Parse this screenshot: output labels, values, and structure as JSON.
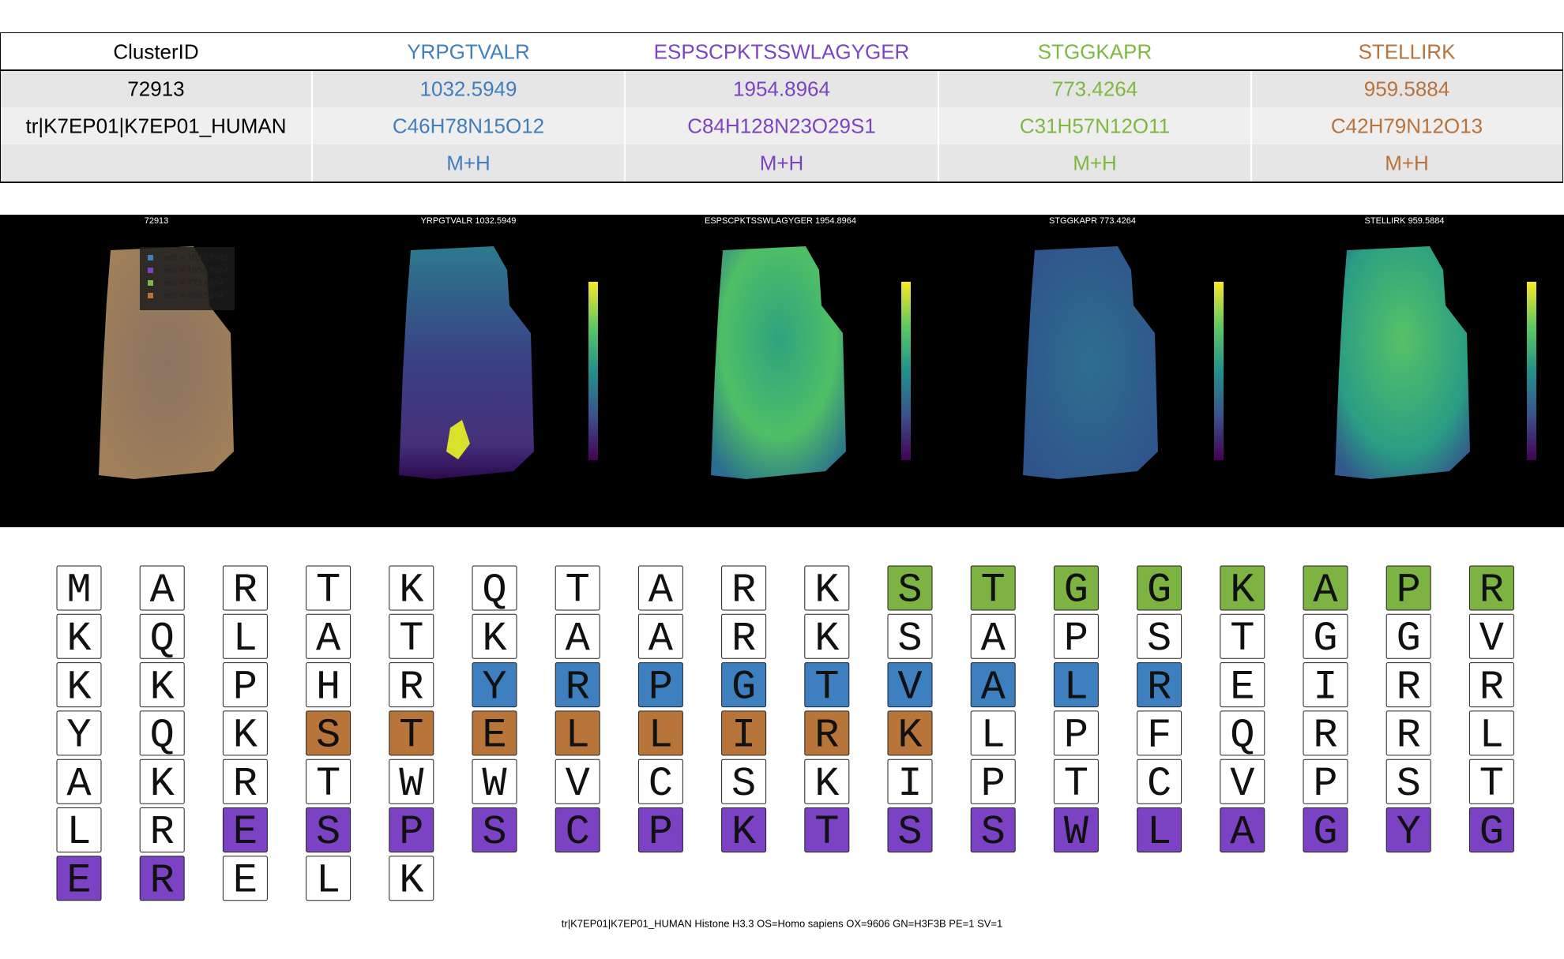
{
  "table": {
    "header": [
      "ClusterID",
      "YRPGTVALR",
      "ESPSCPKTSSWLAGYGER",
      "STGGKAPR",
      "STELLIRK"
    ],
    "rows": [
      [
        "72913",
        "1032.5949",
        "1954.8964",
        "773.4264",
        "959.5884"
      ],
      [
        "tr|K7EP01|K7EP01_HUMAN",
        "C46H78N15O12",
        "C84H128N23O29S1",
        "C31H57N12O11",
        "C42H79N12O13"
      ],
      [
        null,
        "M+H",
        "M+H",
        "M+H",
        "M+H"
      ]
    ],
    "column_colors": [
      "#000000",
      "#3f7fbf",
      "#7a44c2",
      "#7db843",
      "#b8733a"
    ]
  },
  "images": {
    "titles": [
      "72913",
      "YRPGTVALR 1032.5949",
      "ESPSCPKTSSWLAGYGER 1954.8964",
      "STGGKAPR 773.4264",
      "STELLIRK 959.5884"
    ],
    "legend": [
      "m/z = 1032.5949",
      "m/z = 1954.8964",
      "m/z = 773.4264",
      "m/z = 959.5884"
    ],
    "legend_colors": [
      "#3f7fbf",
      "#7a44c2",
      "#7db843",
      "#b8733a"
    ]
  },
  "sequence": {
    "residues": [
      "M",
      "A",
      "R",
      "T",
      "K",
      "Q",
      "T",
      "A",
      "R",
      "K",
      "S",
      "T",
      "G",
      "G",
      "K",
      "A",
      "P",
      "R",
      "K",
      "Q",
      "L",
      "A",
      "T",
      "K",
      "A",
      "A",
      "R",
      "K",
      "S",
      "A",
      "P",
      "S",
      "T",
      "G",
      "G",
      "V",
      "K",
      "K",
      "P",
      "H",
      "R",
      "Y",
      "R",
      "P",
      "G",
      "T",
      "V",
      "A",
      "L",
      "R",
      "E",
      "I",
      "R",
      "R",
      "Y",
      "Q",
      "K",
      "S",
      "T",
      "E",
      "L",
      "L",
      "I",
      "R",
      "K",
      "L",
      "P",
      "F",
      "Q",
      "R",
      "R",
      "L",
      "A",
      "K",
      "R",
      "T",
      "W",
      "W",
      "V",
      "C",
      "S",
      "K",
      "I",
      "P",
      "T",
      "C",
      "V",
      "P",
      "S",
      "T",
      "L",
      "R",
      "E",
      "S",
      "P",
      "S",
      "C",
      "P",
      "K",
      "T",
      "S",
      "S",
      "W",
      "L",
      "A",
      "G",
      "Y",
      "G",
      "E",
      "R",
      "E",
      "L",
      "K"
    ],
    "highlights": [
      {
        "start": 10,
        "end": 17,
        "color": "#7cb342"
      },
      {
        "start": 41,
        "end": 49,
        "color": "#3d7fbf"
      },
      {
        "start": 57,
        "end": 64,
        "color": "#b8753a"
      },
      {
        "start": 92,
        "end": 109,
        "color": "#7b42c4"
      }
    ],
    "caption": "tr|K7EP01|K7EP01_HUMAN Histone H3.3 OS=Homo sapiens OX=9606 GN=H3F3B PE=1 SV=1"
  }
}
